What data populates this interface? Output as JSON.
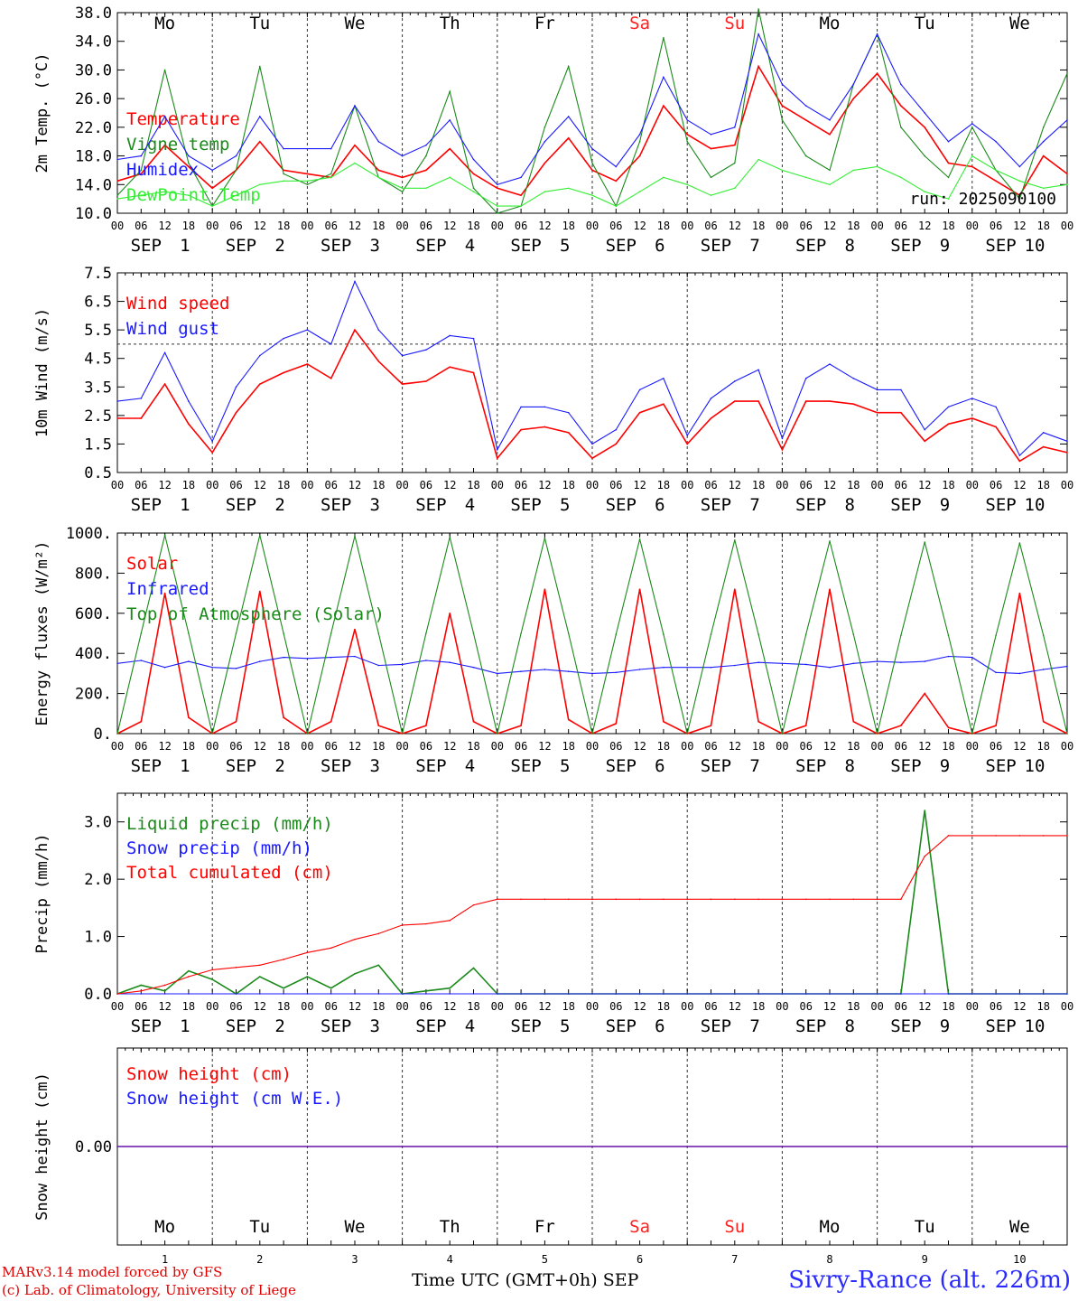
{
  "footer": {
    "credit_line1": "MARv3.14 model forced by GFS",
    "credit_line2": "(c) Lab. of Climatology, University of Liege",
    "xaxis_title": "Time UTC (GMT+0h)",
    "month": "SEP",
    "station": "Sivry-Rance (alt. 226m)"
  },
  "days": [
    "1",
    "2",
    "3",
    "4",
    "5",
    "6",
    "7",
    "8",
    "9",
    "10"
  ],
  "weekdays": [
    "Mo",
    "Tu",
    "We",
    "Th",
    "Fr",
    "Sa",
    "Su",
    "Mo",
    "Tu",
    "We"
  ],
  "weekend_color": "#ff2020",
  "hour_ticks": [
    "00",
    "06",
    "12",
    "18"
  ],
  "colors": {
    "red": "#ff0000",
    "green": "#1a8a1a",
    "blue": "#1a1aff",
    "lightgreen": "#33ee33"
  },
  "chart_data": [
    {
      "type": "line",
      "ylabel": "2m Temp. (°C)",
      "ylim": [
        10,
        38
      ],
      "yticks": [
        "10.0",
        "14.0",
        "18.0",
        "22.0",
        "26.0",
        "30.0",
        "34.0",
        "38.0"
      ],
      "annotation": "run: 2025090100",
      "x_hours": [
        0,
        6,
        12,
        18,
        24,
        30,
        36,
        42,
        48,
        54,
        60,
        66,
        72,
        78,
        84,
        90,
        96,
        102,
        108,
        114,
        120,
        126,
        132,
        138,
        144,
        150,
        156,
        162,
        168,
        174,
        180,
        186,
        192,
        198,
        204,
        210,
        216,
        222,
        228,
        234,
        240
      ],
      "series": [
        {
          "name": "Temperature",
          "color": "#ff0000",
          "values": [
            14.5,
            15.5,
            19.5,
            16.5,
            13.5,
            16,
            20,
            16,
            15.5,
            15,
            19.5,
            16,
            15,
            16,
            19,
            15.5,
            13.5,
            12.5,
            17,
            20.5,
            16,
            14.5,
            18,
            25,
            21,
            19,
            19.5,
            30.5,
            25,
            23,
            21,
            26,
            29.5,
            25,
            22,
            17,
            16.5,
            14.5,
            12.5,
            18,
            15.5
          ]
        },
        {
          "name": "Vigne temp",
          "color": "#1a8a1a",
          "values": [
            12.5,
            16,
            30,
            17,
            11,
            16,
            30.5,
            15.5,
            14,
            15.5,
            25,
            15,
            13,
            18,
            27,
            13.5,
            10,
            11,
            22,
            30.5,
            17,
            11,
            20,
            34.5,
            20,
            15,
            17,
            38.5,
            23,
            18,
            16,
            28,
            35,
            22,
            18,
            15,
            22,
            16,
            12,
            22,
            29.5
          ]
        },
        {
          "name": "Humidex",
          "color": "#1a1aff",
          "values": [
            17.5,
            18,
            23.5,
            18,
            16,
            18,
            23.5,
            19,
            19,
            19,
            25,
            20,
            18,
            19.5,
            23,
            17.5,
            14,
            15,
            20,
            23.5,
            19,
            16.5,
            21,
            29,
            23,
            21,
            22,
            35,
            28,
            25,
            23,
            28,
            35,
            28,
            24,
            20,
            22.5,
            20,
            16.5,
            20,
            23
          ]
        },
        {
          "name": "DewPoint Temp",
          "color": "#33ee33",
          "values": [
            12,
            12.5,
            13,
            12.5,
            11,
            12.5,
            14,
            14.5,
            14.5,
            15,
            17,
            15,
            13.5,
            13.5,
            15,
            13,
            11,
            11,
            13,
            13.5,
            12.5,
            11,
            13,
            15,
            14,
            12.5,
            13.5,
            17.5,
            16,
            15,
            14,
            16,
            16.5,
            15,
            13,
            12,
            18,
            16,
            14.5,
            13.5,
            14
          ]
        }
      ]
    },
    {
      "type": "line",
      "ylabel": "10m Wind (m/s)",
      "ylim": [
        0.5,
        7.5
      ],
      "yticks": [
        "0.5",
        "1.5",
        "2.5",
        "3.5",
        "4.5",
        "5.5",
        "6.5",
        "7.5"
      ],
      "reference_line": 5.0,
      "x_hours": [
        0,
        6,
        12,
        18,
        24,
        30,
        36,
        42,
        48,
        54,
        60,
        66,
        72,
        78,
        84,
        90,
        96,
        102,
        108,
        114,
        120,
        126,
        132,
        138,
        144,
        150,
        156,
        162,
        168,
        174,
        180,
        186,
        192,
        198,
        204,
        210,
        216,
        222,
        228,
        234,
        240
      ],
      "series": [
        {
          "name": "Wind speed",
          "color": "#ff0000",
          "values": [
            2.4,
            2.4,
            3.6,
            2.2,
            1.2,
            2.6,
            3.6,
            4.0,
            4.3,
            3.8,
            5.5,
            4.4,
            3.6,
            3.7,
            4.2,
            4.0,
            1.0,
            2.0,
            2.1,
            1.9,
            1.0,
            1.5,
            2.6,
            2.9,
            1.5,
            2.4,
            3.0,
            3.0,
            1.3,
            3.0,
            3.0,
            2.9,
            2.6,
            2.6,
            1.6,
            2.2,
            2.4,
            2.1,
            0.9,
            1.4,
            1.2
          ]
        },
        {
          "name": "Wind gust",
          "color": "#1a1aff",
          "values": [
            3.0,
            3.1,
            4.7,
            3.0,
            1.6,
            3.5,
            4.6,
            5.2,
            5.5,
            5.0,
            7.2,
            5.5,
            4.6,
            4.8,
            5.3,
            5.2,
            1.3,
            2.8,
            2.8,
            2.6,
            1.5,
            2.0,
            3.4,
            3.8,
            1.8,
            3.1,
            3.7,
            4.1,
            1.7,
            3.8,
            4.3,
            3.8,
            3.4,
            3.4,
            2.0,
            2.8,
            3.1,
            2.8,
            1.1,
            1.9,
            1.6
          ]
        }
      ]
    },
    {
      "type": "line",
      "ylabel": "Energy fluxes (W/m²)",
      "ylim": [
        0,
        1000
      ],
      "yticks": [
        "0.",
        "200.",
        "400.",
        "600.",
        "800.",
        "1000."
      ],
      "x_hours": [
        0,
        6,
        12,
        18,
        24,
        30,
        36,
        42,
        48,
        54,
        60,
        66,
        72,
        78,
        84,
        90,
        96,
        102,
        108,
        114,
        120,
        126,
        132,
        138,
        144,
        150,
        156,
        162,
        168,
        174,
        180,
        186,
        192,
        198,
        204,
        210,
        216,
        222,
        228,
        234,
        240
      ],
      "series": [
        {
          "name": "Solar",
          "color": "#ff0000",
          "values": [
            0,
            60,
            700,
            80,
            0,
            60,
            710,
            80,
            0,
            60,
            520,
            40,
            0,
            40,
            600,
            60,
            0,
            40,
            720,
            70,
            0,
            50,
            720,
            60,
            0,
            40,
            720,
            60,
            0,
            40,
            720,
            60,
            0,
            40,
            200,
            30,
            0,
            40,
            700,
            60,
            0
          ]
        },
        {
          "name": "Infrared",
          "color": "#1a1aff",
          "values": [
            350,
            365,
            330,
            360,
            330,
            325,
            360,
            380,
            375,
            380,
            385,
            340,
            345,
            365,
            355,
            330,
            300,
            310,
            320,
            310,
            300,
            305,
            320,
            330,
            330,
            330,
            340,
            355,
            350,
            345,
            330,
            350,
            360,
            355,
            360,
            385,
            380,
            305,
            300,
            320,
            335
          ]
        },
        {
          "name": "Top of Atmosphere (Solar)",
          "color": "#1a8a1a",
          "values": [
            0,
            500,
            990,
            500,
            0,
            500,
            990,
            500,
            0,
            500,
            985,
            500,
            0,
            500,
            980,
            500,
            0,
            500,
            975,
            500,
            0,
            495,
            970,
            495,
            0,
            495,
            965,
            495,
            0,
            495,
            960,
            495,
            0,
            490,
            955,
            490,
            0,
            490,
            950,
            490,
            0
          ]
        }
      ]
    },
    {
      "type": "line",
      "ylabel": "Precip (mm/h)",
      "ylim": [
        0,
        3.5
      ],
      "yticks": [
        "0.0",
        "1.0",
        "2.0",
        "3.0"
      ],
      "x_hours": [
        0,
        6,
        12,
        18,
        24,
        30,
        36,
        42,
        48,
        54,
        60,
        66,
        72,
        78,
        84,
        90,
        96,
        102,
        108,
        114,
        120,
        126,
        132,
        138,
        144,
        150,
        156,
        162,
        168,
        174,
        180,
        186,
        192,
        198,
        204,
        210,
        216,
        222,
        228,
        234,
        240
      ],
      "series": [
        {
          "name": "Liquid precip (mm/h)",
          "color": "#1a8a1a",
          "values": [
            0,
            0.15,
            0.05,
            0.4,
            0.25,
            0,
            0.3,
            0.1,
            0.3,
            0.1,
            0.35,
            0.5,
            0,
            0.05,
            0.1,
            0.45,
            0,
            0,
            0,
            0,
            0,
            0,
            0,
            0,
            0,
            0,
            0,
            0,
            0,
            0,
            0,
            0,
            0,
            0,
            3.2,
            0,
            0,
            0,
            0,
            0,
            0
          ]
        },
        {
          "name": "Snow precip (mm/h)",
          "color": "#1a1aff",
          "values": [
            0,
            0,
            0,
            0,
            0,
            0,
            0,
            0,
            0,
            0,
            0,
            0,
            0,
            0,
            0,
            0,
            0,
            0,
            0,
            0,
            0,
            0,
            0,
            0,
            0,
            0,
            0,
            0,
            0,
            0,
            0,
            0,
            0,
            0,
            0,
            0,
            0,
            0,
            0,
            0,
            0
          ]
        },
        {
          "name": "Total cumulated (cm)",
          "color": "#ff0000",
          "values": [
            0,
            0.05,
            0.15,
            0.3,
            0.42,
            0.46,
            0.5,
            0.6,
            0.72,
            0.8,
            0.95,
            1.05,
            1.2,
            1.22,
            1.28,
            1.55,
            1.65,
            1.65,
            1.65,
            1.65,
            1.65,
            1.65,
            1.65,
            1.65,
            1.65,
            1.65,
            1.65,
            1.65,
            1.65,
            1.65,
            1.65,
            1.65,
            1.65,
            1.65,
            2.4,
            2.76,
            2.76,
            2.76,
            2.76,
            2.76,
            2.76
          ]
        }
      ]
    },
    {
      "type": "line",
      "ylabel": "Snow height (cm)",
      "ylim": [
        -1,
        1
      ],
      "yticks": [
        "0.00"
      ],
      "x_hours": [
        0,
        240
      ],
      "series": [
        {
          "name": "Snow height (cm)",
          "color": "#ff0000",
          "values": [
            0,
            0
          ]
        },
        {
          "name": "Snow height (cm W.E.)",
          "color": "#1a1aff",
          "values": [
            0,
            0
          ]
        }
      ]
    }
  ]
}
